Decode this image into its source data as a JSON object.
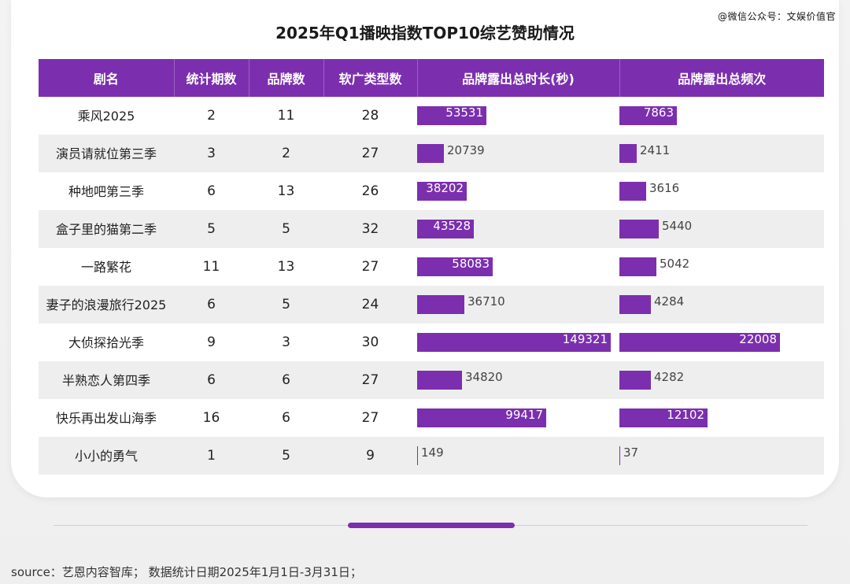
{
  "watermark": "@微信公众号：文娱价值官",
  "footer": {
    "source": "source：艺恩内容智库；  数据统计日期2025年1月1日-3月31日；"
  },
  "chart_data": {
    "type": "table",
    "title": "2025年Q1播映指数TOP10综艺赞助情况",
    "columns": [
      "剧名",
      "统计期数",
      "品牌数",
      "软广类型数",
      "品牌露出总时长(秒)",
      "品牌露出总频次"
    ],
    "rows": [
      {
        "name": "乘风2025",
        "periods": 2,
        "brands": 11,
        "types": 28,
        "duration": 53531,
        "frequency": 7863
      },
      {
        "name": "演员请就位第三季",
        "periods": 3,
        "brands": 2,
        "types": 27,
        "duration": 20739,
        "frequency": 2411
      },
      {
        "name": "种地吧第三季",
        "periods": 6,
        "brands": 13,
        "types": 26,
        "duration": 38202,
        "frequency": 3616
      },
      {
        "name": "盒子里的猫第二季",
        "periods": 5,
        "brands": 5,
        "types": 32,
        "duration": 43528,
        "frequency": 5440
      },
      {
        "name": "一路繁花",
        "periods": 11,
        "brands": 13,
        "types": 27,
        "duration": 58083,
        "frequency": 5042
      },
      {
        "name": "妻子的浪漫旅行2025",
        "periods": 6,
        "brands": 5,
        "types": 24,
        "duration": 36710,
        "frequency": 4284
      },
      {
        "name": "大侦探拾光季",
        "periods": 9,
        "brands": 3,
        "types": 30,
        "duration": 149321,
        "frequency": 22008
      },
      {
        "name": "半熟恋人第四季",
        "periods": 6,
        "brands": 6,
        "types": 27,
        "duration": 34820,
        "frequency": 4282
      },
      {
        "name": "快乐再出发山海季",
        "periods": 16,
        "brands": 6,
        "types": 27,
        "duration": 99417,
        "frequency": 12102
      },
      {
        "name": "小小的勇气",
        "periods": 1,
        "brands": 5,
        "types": 9,
        "duration": 149,
        "frequency": 37
      }
    ],
    "bar_color": "#7b2fae"
  }
}
